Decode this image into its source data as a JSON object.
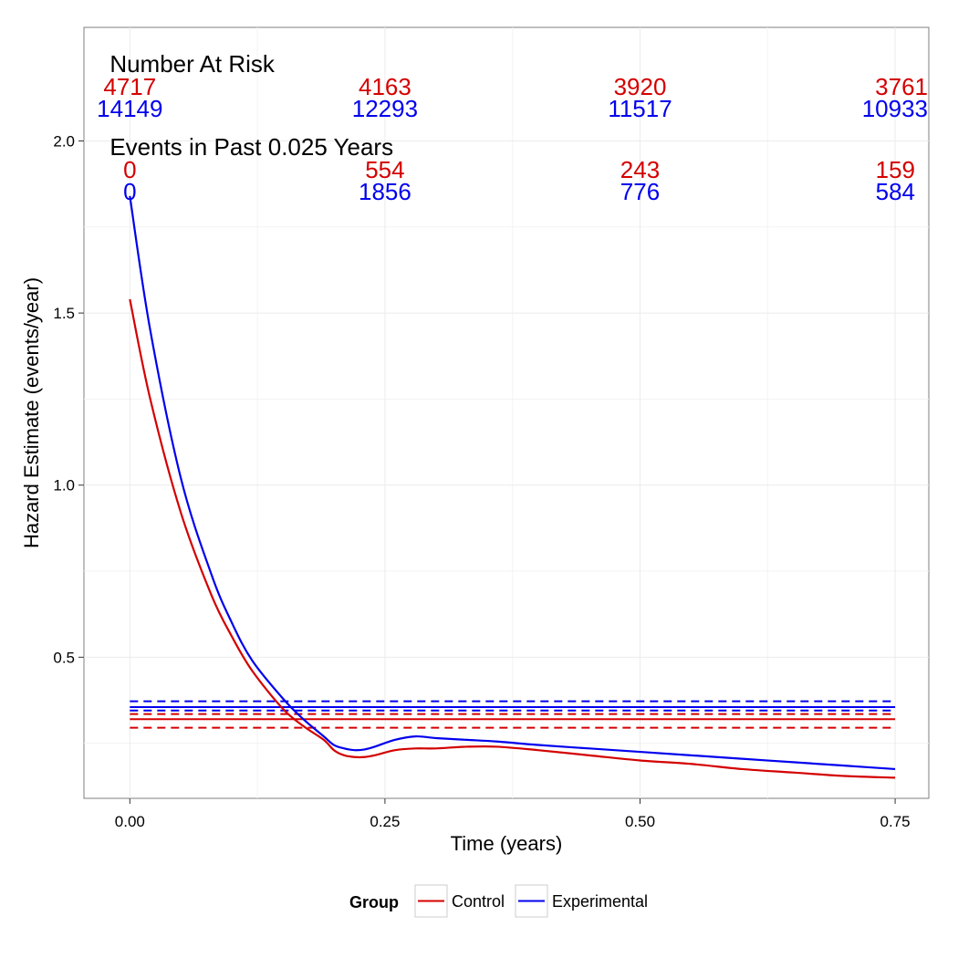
{
  "chart_data": {
    "type": "line",
    "title": "",
    "xlabel": "Time (years)",
    "ylabel": "Hazard Estimate (events/year)",
    "xlim": [
      -0.045,
      0.783
    ],
    "ylim": [
      0.09,
      2.33
    ],
    "x_ticks": [
      0.0,
      0.25,
      0.5,
      0.75
    ],
    "x_tick_labels": [
      "0.00",
      "0.25",
      "0.50",
      "0.75"
    ],
    "y_ticks": [
      0.5,
      1.0,
      1.5,
      2.0
    ],
    "y_tick_labels": [
      "0.5",
      "1.0",
      "1.5",
      "2.0"
    ],
    "grid": true,
    "legend": {
      "title": "Group",
      "position": "bottom",
      "entries": [
        "Control",
        "Experimental"
      ]
    },
    "colors": {
      "Control": "#d40000",
      "Experimental": "#0000ee"
    },
    "series": [
      {
        "name": "Control",
        "style": "solid",
        "x": [
          0.0,
          0.02,
          0.05,
          0.08,
          0.1,
          0.12,
          0.15,
          0.17,
          0.19,
          0.2,
          0.21,
          0.22,
          0.23,
          0.24,
          0.26,
          0.28,
          0.3,
          0.33,
          0.36,
          0.4,
          0.45,
          0.5,
          0.55,
          0.6,
          0.65,
          0.7,
          0.75
        ],
        "y": [
          1.54,
          1.25,
          0.92,
          0.68,
          0.56,
          0.46,
          0.35,
          0.3,
          0.26,
          0.23,
          0.215,
          0.21,
          0.21,
          0.215,
          0.23,
          0.235,
          0.235,
          0.24,
          0.24,
          0.23,
          0.215,
          0.2,
          0.19,
          0.175,
          0.165,
          0.155,
          0.15
        ]
      },
      {
        "name": "Experimental",
        "style": "solid",
        "x": [
          0.0,
          0.02,
          0.05,
          0.08,
          0.1,
          0.12,
          0.15,
          0.17,
          0.19,
          0.2,
          0.21,
          0.22,
          0.23,
          0.24,
          0.26,
          0.28,
          0.3,
          0.33,
          0.36,
          0.4,
          0.45,
          0.5,
          0.55,
          0.6,
          0.65,
          0.7,
          0.75
        ],
        "y": [
          1.84,
          1.45,
          1.02,
          0.74,
          0.6,
          0.49,
          0.38,
          0.32,
          0.27,
          0.245,
          0.235,
          0.23,
          0.232,
          0.24,
          0.26,
          0.27,
          0.265,
          0.26,
          0.255,
          0.245,
          0.235,
          0.225,
          0.215,
          0.205,
          0.195,
          0.185,
          0.175
        ]
      }
    ],
    "reference_lines": [
      {
        "group": "Control",
        "kind": "estimate",
        "style": "solid",
        "y": 0.32
      },
      {
        "group": "Control",
        "kind": "lower",
        "style": "dashed",
        "y": 0.295
      },
      {
        "group": "Control",
        "kind": "upper",
        "style": "dashed",
        "y": 0.335
      },
      {
        "group": "Experimental",
        "kind": "estimate",
        "style": "solid",
        "y": 0.355
      },
      {
        "group": "Experimental",
        "kind": "lower",
        "style": "dashed",
        "y": 0.345
      },
      {
        "group": "Experimental",
        "kind": "upper",
        "style": "dashed",
        "y": 0.372
      }
    ],
    "annotations": {
      "at_risk_title": "Number At Risk",
      "events_title": "Events in Past 0.025 Years",
      "times": [
        0.0,
        0.25,
        0.5,
        0.75
      ],
      "at_risk": [
        {
          "group": "Control",
          "values": [
            "4717",
            "4163",
            "3920",
            "3761"
          ]
        },
        {
          "group": "Experimental",
          "values": [
            "14149",
            "12293",
            "11517",
            "10933"
          ]
        }
      ],
      "events": [
        {
          "group": "Control",
          "values": [
            "0",
            "554",
            "243",
            "159"
          ]
        },
        {
          "group": "Experimental",
          "values": [
            "0",
            "1856",
            "776",
            "584"
          ]
        }
      ]
    }
  }
}
